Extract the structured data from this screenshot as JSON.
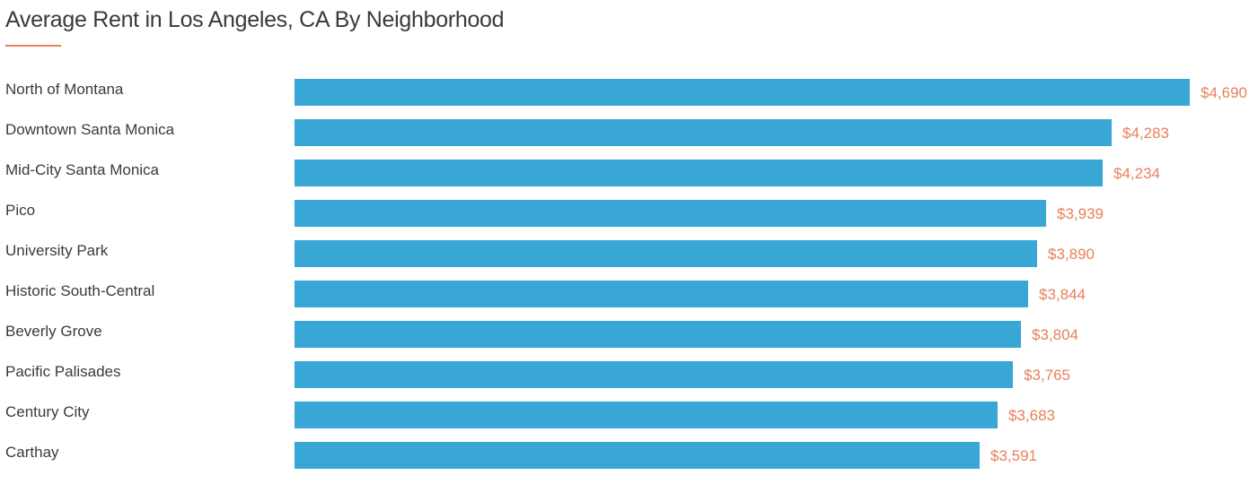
{
  "chart_data": {
    "type": "bar",
    "orientation": "horizontal",
    "title": "Average Rent in Los Angeles, CA By Neighborhood",
    "categories": [
      "North of Montana",
      "Downtown Santa Monica",
      "Mid-City Santa Monica",
      "Pico",
      "University Park",
      "Historic South-Central",
      "Beverly Grove",
      "Pacific Palisades",
      "Century City",
      "Carthay"
    ],
    "values": [
      4690,
      4283,
      4234,
      3939,
      3890,
      3844,
      3804,
      3765,
      3683,
      3591
    ],
    "value_labels": [
      "$4,690",
      "$4,283",
      "$4,234",
      "$3,939",
      "$3,890",
      "$3,844",
      "$3,804",
      "$3,765",
      "$3,683",
      "$3,591"
    ],
    "xlabel": "",
    "ylabel": "",
    "grid": false,
    "legend": "none",
    "colors": {
      "bar": "#38a7d6",
      "value_label": "#e8805a",
      "title_underline": "#e8805a",
      "text": "#3a3a3a"
    }
  }
}
